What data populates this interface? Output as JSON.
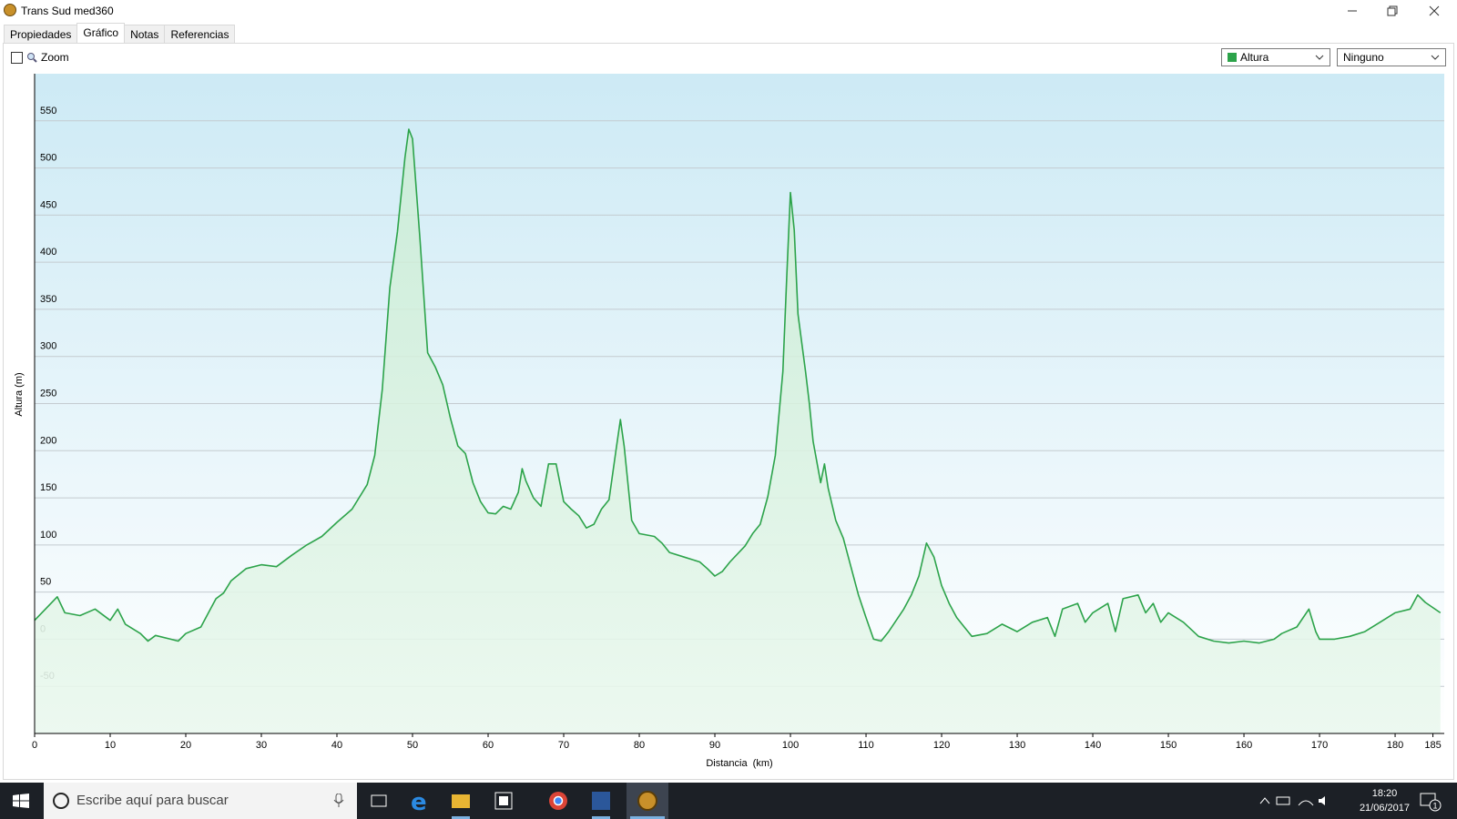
{
  "window": {
    "title": "Trans Sud med360"
  },
  "tabs": [
    "Propiedades",
    "Gráfico",
    "Notas",
    "Referencias"
  ],
  "toolbar": {
    "zoom": "Zoom",
    "compare_select": "Ninguno"
  },
  "chart_data": {
    "type": "line",
    "xlabel": "Distancia  (km)",
    "ylabel": "Altura (m)",
    "x": [
      0,
      3,
      4,
      6,
      8,
      10,
      11,
      12,
      14,
      15,
      16,
      18,
      19,
      20,
      22,
      23,
      24,
      25,
      26,
      28,
      30,
      32,
      34,
      36,
      38,
      40,
      42,
      44,
      45,
      46,
      47,
      48,
      49,
      49.5,
      50,
      51,
      52,
      53,
      54,
      55,
      56,
      57,
      58,
      59,
      60,
      61,
      62,
      63,
      64,
      64.5,
      65,
      66,
      67,
      68,
      69,
      70,
      71,
      72,
      73,
      74,
      75,
      76,
      77,
      77.5,
      78,
      79,
      80,
      82,
      83,
      84,
      86,
      88,
      89,
      90,
      91,
      92,
      94,
      95,
      96,
      97,
      98,
      99,
      99.5,
      100,
      100.5,
      101,
      102,
      102.5,
      103,
      104,
      104.5,
      105,
      106,
      107,
      108,
      109,
      110,
      111,
      112,
      113,
      114,
      115,
      116,
      117,
      118,
      119,
      120,
      121,
      122,
      123,
      124,
      126,
      128,
      130,
      132,
      134,
      135,
      136,
      138,
      139,
      140,
      142,
      143,
      144,
      146,
      147,
      148,
      149,
      150,
      152,
      154,
      156,
      158,
      160,
      162,
      164,
      165,
      167,
      168.6,
      169.5,
      170,
      172,
      174,
      176,
      178,
      180,
      182,
      183,
      184,
      186
    ],
    "series": [
      {
        "name": "Altura",
        "color": "#2ca34a",
        "values": [
          20,
          45,
          28,
          25,
          32,
          20,
          32,
          16,
          6,
          -2,
          4,
          0,
          -2,
          6,
          13,
          28,
          43,
          49,
          62,
          75,
          79,
          77,
          89,
          100,
          109,
          124,
          138,
          164,
          195,
          265,
          373,
          432,
          511,
          541,
          531,
          423,
          304,
          289,
          270,
          235,
          205,
          197,
          166,
          146,
          134,
          133,
          141,
          138,
          156,
          181,
          168,
          150,
          141,
          186,
          186,
          146,
          138,
          131,
          118,
          122,
          138,
          148,
          205,
          233,
          205,
          126,
          112,
          109,
          102,
          92,
          87,
          82,
          75,
          67,
          72,
          82,
          99,
          112,
          122,
          151,
          195,
          284,
          383,
          474,
          434,
          345,
          284,
          250,
          210,
          166,
          186,
          160,
          126,
          107,
          77,
          47,
          23,
          0,
          -2,
          8,
          20,
          32,
          47,
          67,
          102,
          87,
          57,
          38,
          23,
          13,
          3,
          6,
          16,
          8,
          18,
          23,
          3,
          32,
          38,
          18,
          28,
          38,
          8,
          43,
          47,
          28,
          38,
          18,
          28,
          18,
          3,
          -2,
          -4,
          -2,
          -4,
          0,
          6,
          13,
          32,
          8,
          0,
          0,
          3,
          8,
          18,
          28,
          32,
          47,
          39,
          28
        ]
      }
    ],
    "xlim": [
      0,
      186.5
    ],
    "ylim": [
      -100,
      600
    ],
    "xticks": [
      0,
      10,
      20,
      30,
      40,
      50,
      60,
      70,
      80,
      90,
      100,
      110,
      120,
      130,
      140,
      150,
      160,
      170,
      180,
      185
    ],
    "yticks": [
      -50,
      0,
      50,
      100,
      150,
      200,
      250,
      300,
      350,
      400,
      450,
      500,
      550
    ],
    "grid": true
  },
  "taskbar": {
    "search": "Escribe aquí para buscar",
    "time": "18:20",
    "date": "21/06/2017",
    "notifications": "1"
  }
}
